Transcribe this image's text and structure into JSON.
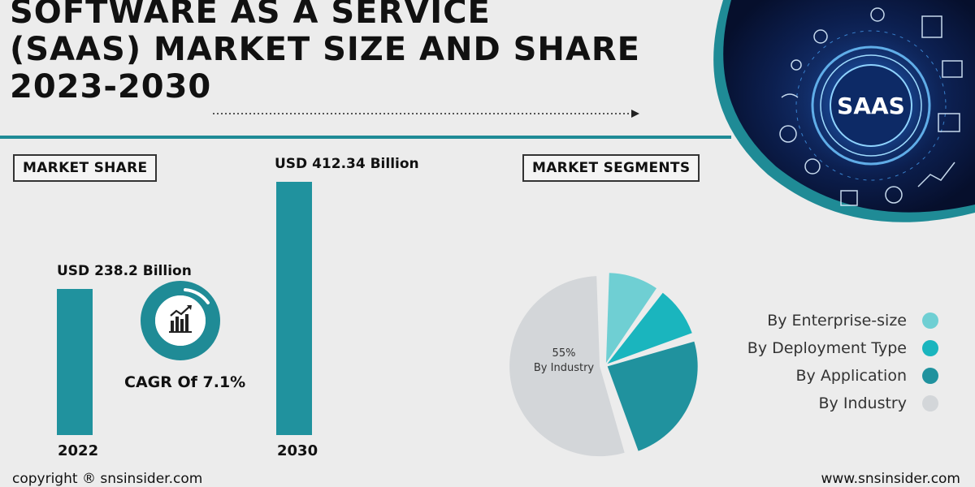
{
  "header": {
    "title_lines": [
      "SOFTWARE AS A SERVICE",
      "(SAAS) MARKET SIZE AND SHARE",
      "2023-2030"
    ],
    "badge_text": "SAAS"
  },
  "market_share": {
    "badge": "MARKET SHARE",
    "cagr": "CAGR Of 7.1%"
  },
  "market_segments": {
    "badge": "MARKET SEGMENTS",
    "pie_label_value": "55%",
    "pie_label_name": "By Industry"
  },
  "footer": {
    "copyright": "copyright ® snsinsider.com",
    "website": "www.snsinsider.com"
  },
  "colors": {
    "accent": "#1f8b96",
    "bar": "#20929e",
    "enterprise": "#6fcfd3",
    "deployment": "#1ab5be",
    "application": "#20929e",
    "industry": "#d3d6d9"
  },
  "chart_data": [
    {
      "type": "bar",
      "categories": [
        "2022",
        "2030"
      ],
      "values": [
        238.2,
        412.34
      ],
      "data_labels": [
        "USD 238.2 Billion",
        "USD 412.34 Billion"
      ],
      "title": "MARKET SHARE",
      "unit": "USD Billion"
    },
    {
      "type": "pie",
      "title": "MARKET SEGMENTS",
      "labels": [
        "By Enterprise-size",
        "By Deployment Type",
        "By Application",
        "By Industry"
      ],
      "values": [
        10,
        10,
        25,
        55
      ],
      "legend_position": "right"
    }
  ]
}
